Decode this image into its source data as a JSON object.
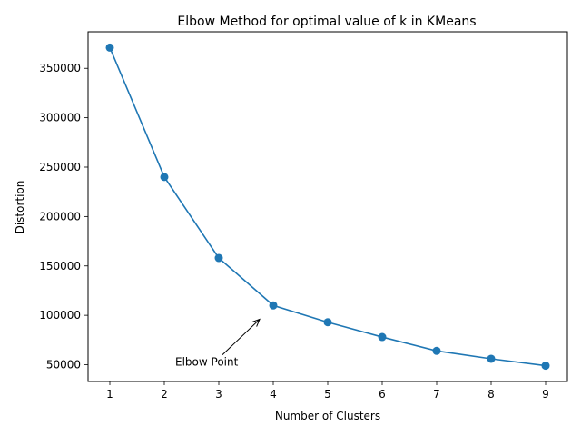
{
  "chart_data": {
    "type": "line",
    "title": "Elbow Method for optimal value of k in KMeans",
    "xlabel": "Number of Clusters",
    "ylabel": "Distortion",
    "x": [
      1,
      2,
      3,
      4,
      5,
      6,
      7,
      8,
      9
    ],
    "values": [
      371000,
      240000,
      158000,
      110000,
      93000,
      78000,
      64000,
      56000,
      49000
    ],
    "xlim": [
      0.6,
      9.4
    ],
    "ylim": [
      33000,
      387000
    ],
    "xticks": [
      "1",
      "2",
      "3",
      "4",
      "5",
      "6",
      "7",
      "8",
      "9"
    ],
    "yticks": [
      50000,
      100000,
      150000,
      200000,
      250000,
      300000,
      350000
    ],
    "ytick_labels": [
      "50000",
      "100000",
      "150000",
      "200000",
      "250000",
      "300000",
      "350000"
    ],
    "series_color": "#1f77b4",
    "grid": false,
    "annotation": {
      "text": "Elbow Point",
      "point": [
        3.75,
        96000
      ],
      "text_at": [
        2.2,
        49000
      ]
    }
  }
}
